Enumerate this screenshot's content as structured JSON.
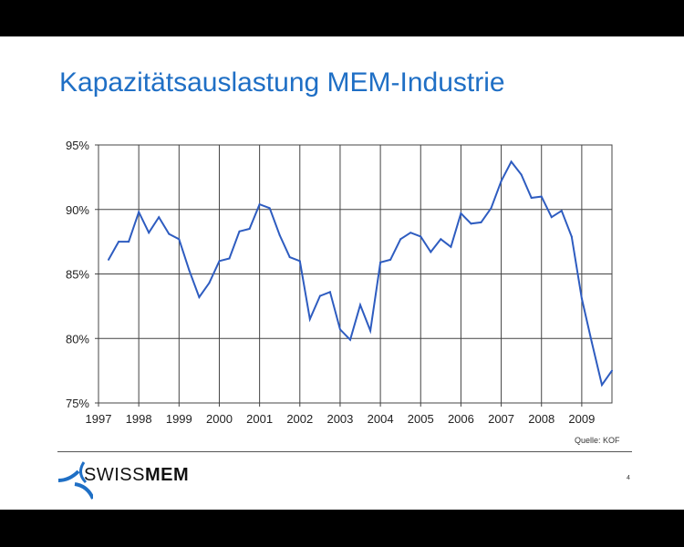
{
  "slide": {
    "title": "Kapazitätsauslastung MEM-Industrie",
    "source": "Quelle: KOF",
    "page_number": "4",
    "logo": {
      "text_light": "SWISS",
      "text_bold": "MEM"
    }
  },
  "colors": {
    "title": "#1f6fc5",
    "line": "#2e5cc0",
    "grid": "#444444"
  },
  "chart_data": {
    "type": "line",
    "title": "",
    "xlabel": "",
    "ylabel": "",
    "xlim": [
      1997,
      2009.75
    ],
    "ylim": [
      75,
      95
    ],
    "grid": true,
    "x_ticks": [
      "1997",
      "1998",
      "1999",
      "2000",
      "2001",
      "2002",
      "2003",
      "2004",
      "2005",
      "2006",
      "2007",
      "2008",
      "2009"
    ],
    "y_ticks": [
      "75%",
      "80%",
      "85%",
      "90%",
      "95%"
    ],
    "series": [
      {
        "x": [
          1997.25,
          1997.5,
          1997.75,
          1998,
          1998.25,
          1998.5,
          1998.75,
          1999,
          1999.25,
          1999.5,
          1999.75,
          2000,
          2000.25,
          2000.5,
          2000.75,
          2001,
          2001.25,
          2001.5,
          2001.75,
          2002,
          2002.25,
          2002.5,
          2002.75,
          2003,
          2003.25,
          2003.5,
          2003.75,
          2004,
          2004.25,
          2004.5,
          2004.75,
          2005,
          2005.25,
          2005.5,
          2005.75,
          2006,
          2006.25,
          2006.5,
          2006.75,
          2007,
          2007.25,
          2007.5,
          2007.75,
          2008,
          2008.25,
          2008.5,
          2008.75,
          2009,
          2009.25,
          2009.5,
          2009.75
        ],
        "values": [
          86.1,
          87.5,
          87.5,
          89.8,
          88.2,
          89.4,
          88.1,
          87.7,
          85.3,
          83.2,
          84.3,
          86.0,
          86.2,
          88.3,
          88.5,
          90.4,
          90.1,
          88.0,
          86.3,
          86.0,
          81.5,
          83.3,
          83.6,
          80.7,
          79.9,
          82.6,
          80.6,
          85.9,
          86.1,
          87.7,
          88.2,
          87.9,
          86.7,
          87.7,
          87.1,
          89.7,
          88.9,
          89.0,
          90.1,
          92.2,
          93.7,
          92.7,
          90.9,
          91.0,
          89.4,
          89.9,
          87.9,
          83.1,
          79.7,
          76.4,
          77.5
        ]
      }
    ]
  }
}
